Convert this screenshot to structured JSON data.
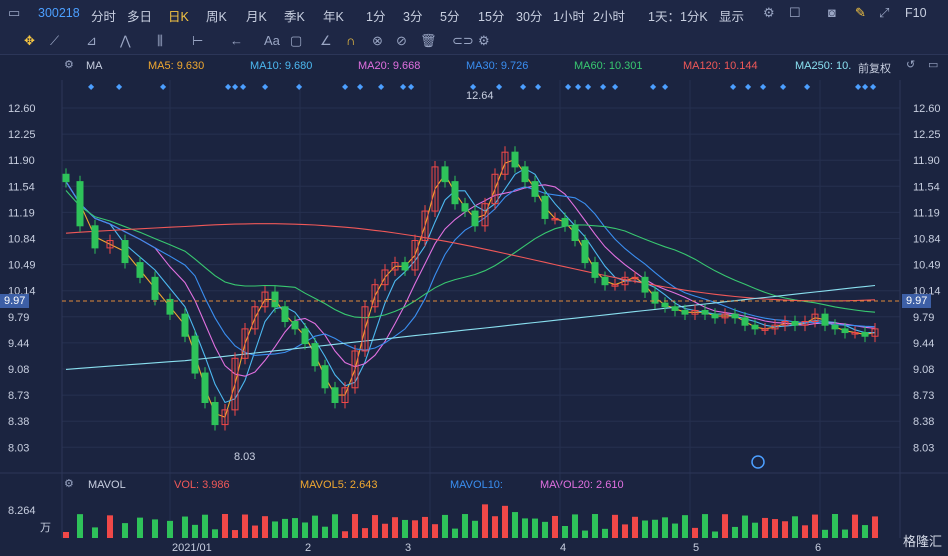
{
  "toolbar": {
    "code": "300218",
    "periods": [
      "分时",
      "多日",
      "日K",
      "周K",
      "月K",
      "季K",
      "年K",
      "1分",
      "3分",
      "5分",
      "15分",
      "30分",
      "1小时",
      "2小时",
      "1天：1分K"
    ],
    "active_period": "日K",
    "display_label": "显示",
    "fio_label": "F10"
  },
  "ma": {
    "label": "MA",
    "ma5": "MA5: 9.630",
    "ma10": "MA10: 9.680",
    "ma20": "MA20: 9.668",
    "ma30": "MA30: 9.726",
    "ma60": "MA60: 10.301",
    "ma120": "MA120: 10.144",
    "ma250": "MA250: 10.",
    "adjust": "前复权"
  },
  "colors": {
    "ma5": "#f0a830",
    "ma10": "#4cb8f0",
    "ma20": "#e070e0",
    "ma30": "#3a8ef0",
    "ma60": "#38c870",
    "ma120": "#f05858",
    "ma250": "#8ae0f0",
    "up": "#f04848",
    "down": "#2ec25a"
  },
  "price_axis": {
    "ticks": [
      "12.60",
      "12.25",
      "11.90",
      "11.54",
      "11.19",
      "10.84",
      "10.49",
      "10.14",
      "9.79",
      "9.44",
      "9.08",
      "8.73",
      "8.38",
      "8.03"
    ],
    "current": "9.97",
    "high_label": "12.64",
    "low_label": "8.03"
  },
  "vol": {
    "label": "MAVOL",
    "vol": "VOL: 3.986",
    "mavol5": "MAVOL5: 2.643",
    "mavol10": "MAVOL10:",
    "mavol20": "MAVOL20: 2.610",
    "axis_top": "8.264",
    "unit": "万"
  },
  "x_axis": [
    "2021/01",
    "2",
    "3",
    "4",
    "5",
    "6"
  ],
  "logo": "格隆汇"
}
